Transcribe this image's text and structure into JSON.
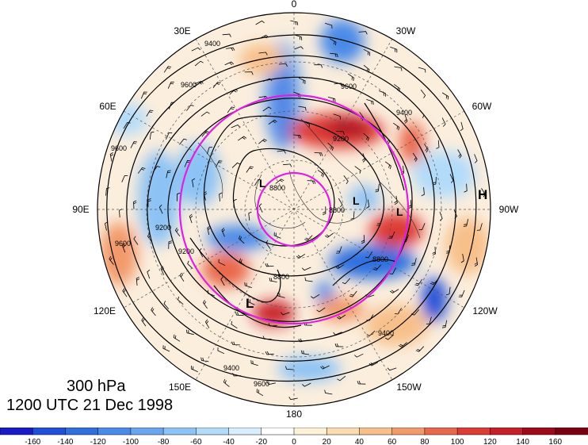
{
  "map": {
    "level_label": "300 hPa",
    "time_label": "1200 UTC 21 Dec 1998",
    "longitude_labels": [
      "0",
      "30W",
      "60W",
      "90W",
      "120W",
      "150W",
      "180",
      "150E",
      "120E",
      "90E",
      "60E",
      "30E"
    ],
    "pressure_centers": [
      {
        "type": "H"
      },
      {
        "type": "L"
      },
      {
        "type": "L"
      },
      {
        "type": "L"
      },
      {
        "type": "L"
      }
    ],
    "contour_labels": [
      "9400",
      "9600",
      "9400",
      "9600",
      "9200",
      "8800",
      "8800",
      "9400",
      "9600",
      "9200",
      "9400",
      "9600",
      "8800",
      "8800",
      "9200",
      "9600"
    ],
    "reference_circle_color": "#e020e0",
    "colorbar": {
      "ticks": [
        "-160",
        "-140",
        "-120",
        "-100",
        "-80",
        "-60",
        "-40",
        "-20",
        "0",
        "20",
        "40",
        "60",
        "80",
        "100",
        "120",
        "140",
        "160"
      ],
      "colors": [
        "#1a1ac8",
        "#2050d8",
        "#2f6fe0",
        "#4a8ae8",
        "#6aa6ef",
        "#8cc2f5",
        "#b2dbfa",
        "#d8eefc",
        "#ffffff",
        "#fdf1d8",
        "#fbdcb0",
        "#f7c08a",
        "#f29a6a",
        "#e9684c",
        "#dd3b34",
        "#c81e28",
        "#9e0a1a"
      ]
    }
  }
}
